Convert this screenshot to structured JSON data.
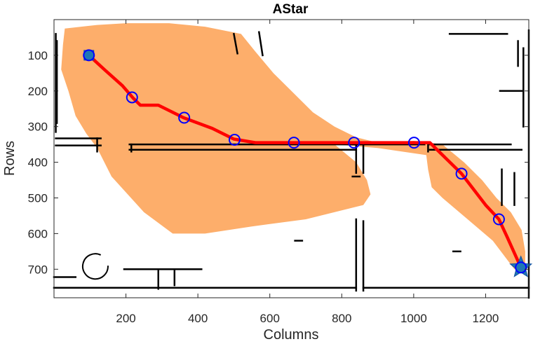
{
  "chart_data": {
    "type": "scatter",
    "title": "AStar",
    "xlabel": "Columns",
    "ylabel": "Rows",
    "xlim": [
      0,
      1320
    ],
    "ylim": [
      0,
      780
    ],
    "y_reversed": true,
    "grid": false,
    "legend": "none",
    "x_ticks": [
      200,
      400,
      600,
      800,
      1000,
      1200
    ],
    "y_ticks": [
      100,
      200,
      300,
      400,
      500,
      600,
      700
    ],
    "explored_region": {
      "name": "explored",
      "color": "#fdae6b",
      "points": [
        [
          30,
          25
        ],
        [
          120,
          15
        ],
        [
          200,
          10
        ],
        [
          320,
          10
        ],
        [
          420,
          20
        ],
        [
          520,
          40
        ],
        [
          560,
          90
        ],
        [
          610,
          150
        ],
        [
          680,
          220
        ],
        [
          720,
          260
        ],
        [
          780,
          300
        ],
        [
          840,
          330
        ],
        [
          900,
          345
        ],
        [
          1000,
          340
        ],
        [
          1080,
          350
        ],
        [
          1140,
          400
        ],
        [
          1190,
          450
        ],
        [
          1230,
          500
        ],
        [
          1270,
          540
        ],
        [
          1300,
          590
        ],
        [
          1310,
          650
        ],
        [
          1310,
          700
        ],
        [
          1280,
          700
        ],
        [
          1220,
          620
        ],
        [
          1150,
          560
        ],
        [
          1080,
          500
        ],
        [
          1050,
          470
        ],
        [
          1040,
          420
        ],
        [
          1035,
          380
        ],
        [
          900,
          360
        ],
        [
          780,
          350
        ],
        [
          840,
          400
        ],
        [
          870,
          450
        ],
        [
          880,
          490
        ],
        [
          860,
          520
        ],
        [
          700,
          560
        ],
        [
          550,
          580
        ],
        [
          420,
          600
        ],
        [
          330,
          600
        ],
        [
          250,
          540
        ],
        [
          160,
          440
        ],
        [
          120,
          360
        ],
        [
          90,
          320
        ],
        [
          60,
          270
        ],
        [
          40,
          200
        ],
        [
          20,
          140
        ],
        [
          25,
          70
        ]
      ]
    },
    "path": {
      "name": "path",
      "color": "#ff0000",
      "points": [
        [
          97,
          100
        ],
        [
          140,
          140
        ],
        [
          190,
          185
        ],
        [
          220,
          220
        ],
        [
          240,
          240
        ],
        [
          290,
          240
        ],
        [
          360,
          275
        ],
        [
          440,
          305
        ],
        [
          500,
          335
        ],
        [
          560,
          345
        ],
        [
          667,
          345
        ],
        [
          834,
          345
        ],
        [
          1001,
          345
        ],
        [
          1045,
          345
        ],
        [
          1133,
          432
        ],
        [
          1200,
          520
        ],
        [
          1237,
          560
        ],
        [
          1260,
          610
        ],
        [
          1298,
          695
        ]
      ]
    },
    "waypoints": {
      "name": "waypoints",
      "color": "#0000ff",
      "points": [
        [
          97,
          100
        ],
        [
          217,
          218
        ],
        [
          362,
          275
        ],
        [
          502,
          337
        ],
        [
          667,
          345
        ],
        [
          834,
          345
        ],
        [
          1001,
          345
        ],
        [
          1133,
          432
        ],
        [
          1237,
          560
        ],
        [
          1298,
          695
        ]
      ]
    },
    "start": {
      "name": "start",
      "marker": "square",
      "color": "#1f77b4",
      "point": [
        97,
        100
      ]
    },
    "goal": {
      "name": "goal",
      "marker": "star",
      "color": "#1f77b4",
      "point": [
        1298,
        695
      ]
    },
    "walls": {
      "color": "#000000",
      "segments": [
        [
          [
            5,
            40
          ],
          [
            5,
            315
          ]
        ],
        [
          [
            8,
            60
          ],
          [
            8,
            290
          ]
        ],
        [
          [
            5,
            333
          ],
          [
            130,
            333
          ]
        ],
        [
          [
            5,
            353
          ],
          [
            130,
            353
          ]
        ],
        [
          [
            120,
            333
          ],
          [
            120,
            370
          ]
        ],
        [
          [
            210,
            350
          ],
          [
            1030,
            350
          ]
        ],
        [
          [
            210,
            365
          ],
          [
            840,
            365
          ]
        ],
        [
          [
            215,
            350
          ],
          [
            215,
            370
          ]
        ],
        [
          [
            840,
            345
          ],
          [
            840,
            430
          ]
        ],
        [
          [
            860,
            345
          ],
          [
            860,
            430
          ]
        ],
        [
          [
            830,
            440
          ],
          [
            850,
            440
          ]
        ],
        [
          [
            840,
            560
          ],
          [
            840,
            760
          ]
        ],
        [
          [
            860,
            565
          ],
          [
            860,
            760
          ]
        ],
        [
          [
            1045,
            350
          ],
          [
            1270,
            350
          ]
        ],
        [
          [
            1045,
            365
          ],
          [
            1300,
            365
          ]
        ],
        [
          [
            1040,
            350
          ],
          [
            1040,
            370
          ]
        ],
        [
          [
            1320,
            30
          ],
          [
            1320,
            780
          ]
        ],
        [
          [
            1290,
            60
          ],
          [
            1290,
            130
          ]
        ],
        [
          [
            1305,
            80
          ],
          [
            1305,
            300
          ]
        ],
        [
          [
            1240,
            200
          ],
          [
            1300,
            200
          ]
        ],
        [
          [
            1245,
            420
          ],
          [
            1245,
            520
          ]
        ],
        [
          [
            1280,
            430
          ],
          [
            1280,
            520
          ]
        ],
        [
          [
            1100,
            40
          ],
          [
            1260,
            40
          ]
        ],
        [
          [
            500,
            40
          ],
          [
            510,
            95
          ]
        ],
        [
          [
            570,
            35
          ],
          [
            580,
            100
          ]
        ],
        [
          [
            0,
            752
          ],
          [
            840,
            752
          ]
        ],
        [
          [
            860,
            752
          ],
          [
            1320,
            752
          ]
        ],
        [
          [
            0,
            722
          ],
          [
            60,
            722
          ]
        ],
        [
          [
            290,
            705
          ],
          [
            290,
            755
          ]
        ],
        [
          [
            335,
            705
          ],
          [
            335,
            745
          ]
        ],
        [
          [
            195,
            700
          ],
          [
            410,
            700
          ]
        ],
        [
          [
            670,
            620
          ],
          [
            690,
            620
          ]
        ],
        [
          [
            1110,
            650
          ],
          [
            1130,
            650
          ]
        ]
      ]
    }
  }
}
